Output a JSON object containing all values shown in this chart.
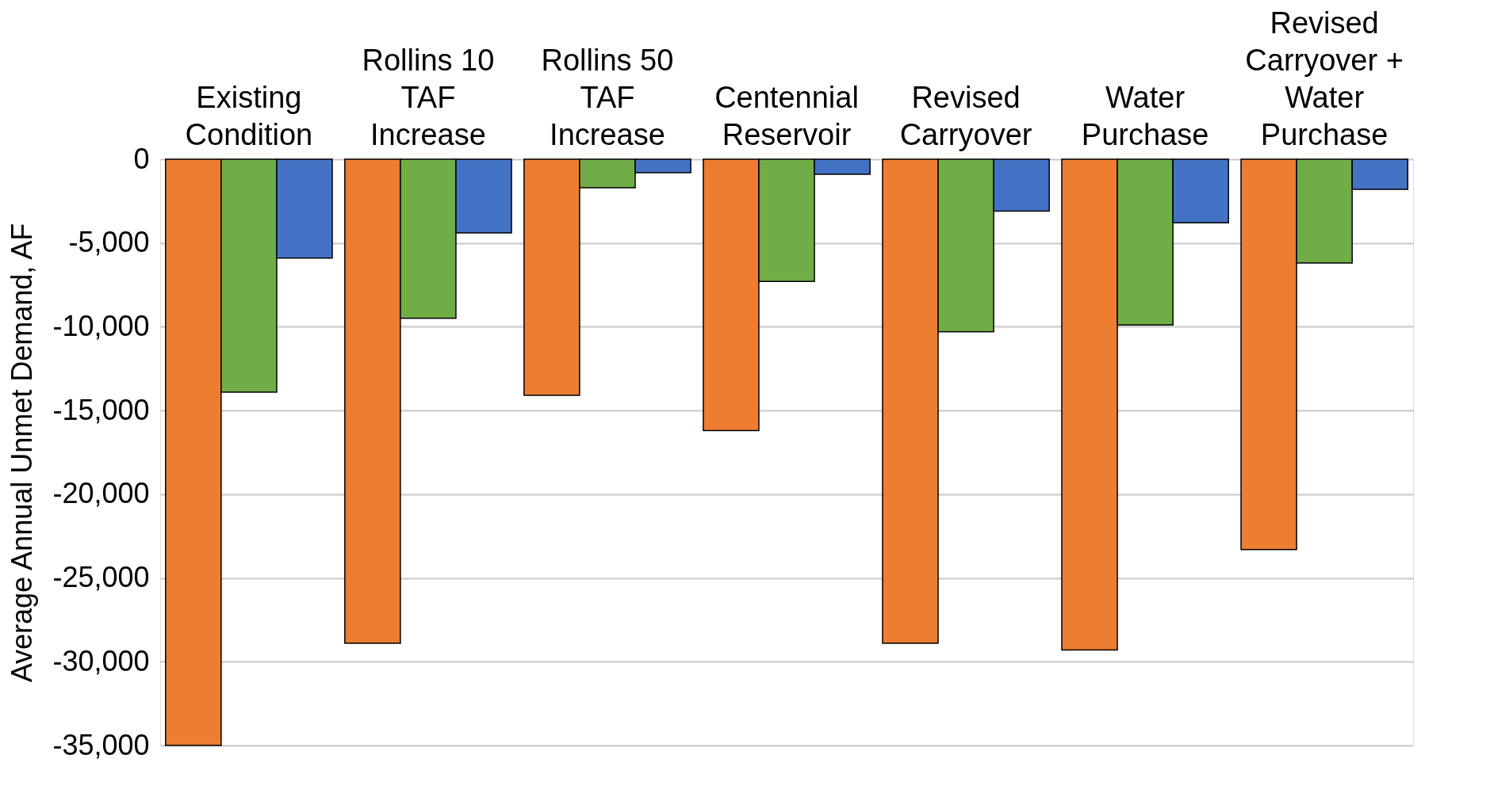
{
  "chart_data": {
    "type": "bar",
    "ylabel": "Average Annual Unmet Demand, AF",
    "categories": [
      "Existing Condition",
      "Rollins 10 TAF Increase",
      "Rollins 50 TAF Increase",
      "Centennial Reservoir",
      "Revised Carryover",
      "Water Purchase",
      "Revised Carryover + Water Purchase"
    ],
    "series": [
      {
        "color": "#ed7d31",
        "values": [
          -35000,
          -28900,
          -14100,
          -16200,
          -28900,
          -29300,
          -23300
        ]
      },
      {
        "color": "#70ad47",
        "values": [
          -13900,
          -9500,
          -1700,
          -7300,
          -10300,
          -9900,
          -6200
        ]
      },
      {
        "color": "#4472c4",
        "values": [
          -5900,
          -4400,
          -800,
          -900,
          -3100,
          -3800,
          -1800
        ]
      }
    ],
    "ylim": [
      -35000,
      0
    ],
    "yticks": [
      {
        "value": -35000,
        "label": "-35,000"
      },
      {
        "value": -30000,
        "label": "-30,000"
      },
      {
        "value": -25000,
        "label": "-25,000"
      },
      {
        "value": -20000,
        "label": "-20,000"
      },
      {
        "value": -15000,
        "label": "-15,000"
      },
      {
        "value": -10000,
        "label": "-10,000"
      },
      {
        "value": -5000,
        "label": "-5,000"
      },
      0
    ],
    "grid": "y",
    "legend": false
  }
}
